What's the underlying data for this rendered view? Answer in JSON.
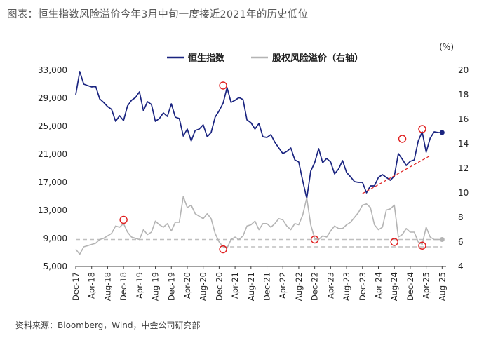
{
  "title": "图表：恒生指数风险溢价今年3月中旬一度接近2021年的历史低位",
  "source": "资料来源：Bloomberg，Wind，中金公司研究部",
  "chart_data": {
    "type": "line",
    "legend": {
      "position": "top-center"
    },
    "series": [
      {
        "name": "恒生指数",
        "axis": "left",
        "color": "#1a2480",
        "points": [
          [
            "2017-12",
            29500
          ],
          [
            "2018-01",
            32800
          ],
          [
            "2018-02",
            31000
          ],
          [
            "2018-03",
            30800
          ],
          [
            "2018-04",
            30600
          ],
          [
            "2018-05",
            30700
          ],
          [
            "2018-06",
            28900
          ],
          [
            "2018-07",
            28400
          ],
          [
            "2018-08",
            27800
          ],
          [
            "2018-09",
            27400
          ],
          [
            "2018-10",
            25700
          ],
          [
            "2018-11",
            26500
          ],
          [
            "2018-12",
            25800
          ],
          [
            "2019-01",
            27900
          ],
          [
            "2019-02",
            28700
          ],
          [
            "2019-03",
            29100
          ],
          [
            "2019-04",
            29900
          ],
          [
            "2019-05",
            27200
          ],
          [
            "2019-06",
            28500
          ],
          [
            "2019-07",
            28100
          ],
          [
            "2019-08",
            25700
          ],
          [
            "2019-09",
            26100
          ],
          [
            "2019-10",
            26900
          ],
          [
            "2019-11",
            26400
          ],
          [
            "2019-12",
            28200
          ],
          [
            "2020-01",
            26300
          ],
          [
            "2020-02",
            26100
          ],
          [
            "2020-03",
            23600
          ],
          [
            "2020-04",
            24600
          ],
          [
            "2020-05",
            22900
          ],
          [
            "2020-06",
            24400
          ],
          [
            "2020-07",
            24600
          ],
          [
            "2020-08",
            25200
          ],
          [
            "2020-09",
            23500
          ],
          [
            "2020-10",
            24100
          ],
          [
            "2020-11",
            26300
          ],
          [
            "2020-12",
            27200
          ],
          [
            "2021-01",
            28300
          ],
          [
            "2021-02",
            30500
          ],
          [
            "2021-03",
            28400
          ],
          [
            "2021-04",
            28700
          ],
          [
            "2021-05",
            29100
          ],
          [
            "2021-06",
            28800
          ],
          [
            "2021-07",
            25900
          ],
          [
            "2021-08",
            25500
          ],
          [
            "2021-09",
            24600
          ],
          [
            "2021-10",
            25400
          ],
          [
            "2021-11",
            23500
          ],
          [
            "2021-12",
            23400
          ],
          [
            "2022-01",
            23800
          ],
          [
            "2022-02",
            22700
          ],
          [
            "2022-03",
            21900
          ],
          [
            "2022-04",
            21100
          ],
          [
            "2022-05",
            21400
          ],
          [
            "2022-06",
            21900
          ],
          [
            "2022-07",
            20200
          ],
          [
            "2022-08",
            19900
          ],
          [
            "2022-09",
            17200
          ],
          [
            "2022-10",
            14700
          ],
          [
            "2022-11",
            18600
          ],
          [
            "2022-12",
            19800
          ],
          [
            "2023-01",
            21800
          ],
          [
            "2023-02",
            19800
          ],
          [
            "2023-03",
            20400
          ],
          [
            "2023-04",
            19900
          ],
          [
            "2023-05",
            18200
          ],
          [
            "2023-06",
            18900
          ],
          [
            "2023-07",
            20100
          ],
          [
            "2023-08",
            18400
          ],
          [
            "2023-09",
            17800
          ],
          [
            "2023-10",
            17100
          ],
          [
            "2023-11",
            17000
          ],
          [
            "2023-12",
            17000
          ],
          [
            "2024-01",
            15500
          ],
          [
            "2024-02",
            16500
          ],
          [
            "2024-03",
            16500
          ],
          [
            "2024-04",
            17700
          ],
          [
            "2024-05",
            18100
          ],
          [
            "2024-06",
            17700
          ],
          [
            "2024-07",
            17300
          ],
          [
            "2024-08",
            17900
          ],
          [
            "2024-09",
            21100
          ],
          [
            "2024-10",
            20300
          ],
          [
            "2024-11",
            19400
          ],
          [
            "2024-12",
            20000
          ],
          [
            "2025-01",
            20200
          ],
          [
            "2025-02",
            22900
          ],
          [
            "2025-03",
            24200
          ],
          [
            "2025-04",
            21300
          ],
          [
            "2025-05",
            23300
          ],
          [
            "2025-06",
            24200
          ],
          [
            "2025-07",
            24100
          ]
        ],
        "last_point": [
          "2025-08",
          24100
        ]
      },
      {
        "name": "股权风险溢价（右轴）",
        "axis": "right",
        "color": "#b4b4b4",
        "points": [
          [
            "2017-12",
            5.4
          ],
          [
            "2018-01",
            5.0
          ],
          [
            "2018-02",
            5.6
          ],
          [
            "2018-03",
            5.7
          ],
          [
            "2018-04",
            5.8
          ],
          [
            "2018-05",
            5.9
          ],
          [
            "2018-06",
            6.2
          ],
          [
            "2018-07",
            6.3
          ],
          [
            "2018-08",
            6.5
          ],
          [
            "2018-09",
            6.7
          ],
          [
            "2018-10",
            7.3
          ],
          [
            "2018-11",
            7.2
          ],
          [
            "2018-12",
            7.5
          ],
          [
            "2019-01",
            6.8
          ],
          [
            "2019-02",
            6.4
          ],
          [
            "2019-03",
            6.3
          ],
          [
            "2019-04",
            6.2
          ],
          [
            "2019-05",
            7.0
          ],
          [
            "2019-06",
            6.6
          ],
          [
            "2019-07",
            6.8
          ],
          [
            "2019-08",
            7.7
          ],
          [
            "2019-09",
            7.4
          ],
          [
            "2019-10",
            7.2
          ],
          [
            "2019-11",
            7.5
          ],
          [
            "2019-12",
            6.9
          ],
          [
            "2020-01",
            7.6
          ],
          [
            "2020-02",
            7.6
          ],
          [
            "2020-03",
            9.7
          ],
          [
            "2020-04",
            8.8
          ],
          [
            "2020-05",
            9.0
          ],
          [
            "2020-06",
            8.3
          ],
          [
            "2020-07",
            8.1
          ],
          [
            "2020-08",
            7.9
          ],
          [
            "2020-09",
            8.3
          ],
          [
            "2020-10",
            7.9
          ],
          [
            "2020-11",
            6.7
          ],
          [
            "2020-12",
            6.0
          ],
          [
            "2021-01",
            5.6
          ],
          [
            "2021-02",
            5.5
          ],
          [
            "2021-03",
            6.2
          ],
          [
            "2021-04",
            6.4
          ],
          [
            "2021-05",
            6.2
          ],
          [
            "2021-06",
            6.5
          ],
          [
            "2021-07",
            7.3
          ],
          [
            "2021-08",
            7.4
          ],
          [
            "2021-09",
            7.7
          ],
          [
            "2021-10",
            7.0
          ],
          [
            "2021-11",
            7.5
          ],
          [
            "2021-12",
            7.5
          ],
          [
            "2022-01",
            7.2
          ],
          [
            "2022-02",
            7.5
          ],
          [
            "2022-03",
            7.9
          ],
          [
            "2022-04",
            7.8
          ],
          [
            "2022-05",
            7.3
          ],
          [
            "2022-06",
            7.0
          ],
          [
            "2022-07",
            7.5
          ],
          [
            "2022-08",
            7.4
          ],
          [
            "2022-09",
            8.2
          ],
          [
            "2022-10",
            9.6
          ],
          [
            "2022-11",
            7.4
          ],
          [
            "2022-12",
            6.3
          ],
          [
            "2023-01",
            6.2
          ],
          [
            "2023-02",
            6.5
          ],
          [
            "2023-03",
            6.4
          ],
          [
            "2023-04",
            6.9
          ],
          [
            "2023-05",
            7.3
          ],
          [
            "2023-06",
            7.1
          ],
          [
            "2023-07",
            7.1
          ],
          [
            "2023-08",
            7.4
          ],
          [
            "2023-09",
            7.6
          ],
          [
            "2023-10",
            8.0
          ],
          [
            "2023-11",
            8.4
          ],
          [
            "2023-12",
            9.0
          ],
          [
            "2024-01",
            9.1
          ],
          [
            "2024-02",
            8.8
          ],
          [
            "2024-03",
            7.4
          ],
          [
            "2024-04",
            7.0
          ],
          [
            "2024-05",
            7.2
          ],
          [
            "2024-06",
            8.6
          ],
          [
            "2024-07",
            8.7
          ],
          [
            "2024-08",
            9.0
          ],
          [
            "2024-09",
            6.4
          ],
          [
            "2024-10",
            6.6
          ],
          [
            "2024-11",
            7.1
          ],
          [
            "2024-12",
            6.8
          ],
          [
            "2025-01",
            6.8
          ],
          [
            "2025-02",
            6.0
          ],
          [
            "2025-03",
            5.8
          ],
          [
            "2025-04",
            7.2
          ],
          [
            "2025-05",
            6.4
          ],
          [
            "2025-06",
            6.2
          ],
          [
            "2025-07",
            6.2
          ]
        ],
        "last_point": [
          "2025-08",
          6.2
        ]
      }
    ],
    "y_left": {
      "min": 5000,
      "max": 33000,
      "ticks": [
        "33,000",
        "29,000",
        "25,000",
        "21,000",
        "17,000",
        "13,000",
        "9,000",
        "5,000"
      ]
    },
    "y_right": {
      "min": 4,
      "max": 20,
      "unit_label": "(%)",
      "ticks": [
        "20",
        "18",
        "16",
        "14",
        "12",
        "10",
        "8",
        "6",
        "4"
      ]
    },
    "x_ticks": [
      [
        "2017-12",
        "Dec-17"
      ],
      [
        "2018-04",
        "Apr-18"
      ],
      [
        "2018-08",
        "Aug-18"
      ],
      [
        "2018-12",
        "Dec-18"
      ],
      [
        "2019-04",
        "Apr-19"
      ],
      [
        "2019-08",
        "Aug-19"
      ],
      [
        "2019-12",
        "Dec-19"
      ],
      [
        "2020-04",
        "Apr-20"
      ],
      [
        "2020-08",
        "Aug-20"
      ],
      [
        "2020-12",
        "Dec-20"
      ],
      [
        "2021-04",
        "Apr-21"
      ],
      [
        "2021-08",
        "Aug-21"
      ],
      [
        "2021-12",
        "Dec-21"
      ],
      [
        "2022-04",
        "Apr-22"
      ],
      [
        "2022-08",
        "Aug-22"
      ],
      [
        "2022-12",
        "Dec-22"
      ],
      [
        "2023-04",
        "Apr-23"
      ],
      [
        "2023-08",
        "Aug-23"
      ],
      [
        "2023-12",
        "Dec-23"
      ],
      [
        "2024-04",
        "Apr-24"
      ],
      [
        "2024-08",
        "Aug-24"
      ],
      [
        "2024-12",
        "Dec-24"
      ],
      [
        "2025-04",
        "Apr-25"
      ],
      [
        "2025-08",
        "Aug-25"
      ]
    ],
    "x_range": [
      "2017-12",
      "2025-09"
    ],
    "reference_lines": [
      {
        "axis": "right",
        "value": 6.2,
        "from": "2017-12",
        "to": "2025-08",
        "style": "dashed",
        "color": "#bfbfbf"
      },
      {
        "axis": "right",
        "value": 5.6,
        "from": "2021-01",
        "to": "2025-08",
        "style": "dashed",
        "color": "#bfbfbf"
      }
    ],
    "trend_line": {
      "axis": "left",
      "from": [
        "2023-12",
        15400
      ],
      "to": [
        "2025-05",
        20800
      ],
      "style": "dashed",
      "color": "#e02020"
    },
    "highlight_circles": [
      {
        "axis": "left",
        "x": "2021-01",
        "y": 30800
      },
      {
        "axis": "left",
        "x": "2024-10",
        "y": 23200
      },
      {
        "axis": "left",
        "x": "2025-03",
        "y": 24600
      },
      {
        "axis": "right",
        "x": "2018-12",
        "y": 7.8
      },
      {
        "axis": "right",
        "x": "2021-01",
        "y": 5.4
      },
      {
        "axis": "right",
        "x": "2022-12",
        "y": 6.2
      },
      {
        "axis": "right",
        "x": "2024-08",
        "y": 6.0
      },
      {
        "axis": "right",
        "x": "2025-03",
        "y": 5.7
      }
    ],
    "highlight_color": "#e02020"
  }
}
